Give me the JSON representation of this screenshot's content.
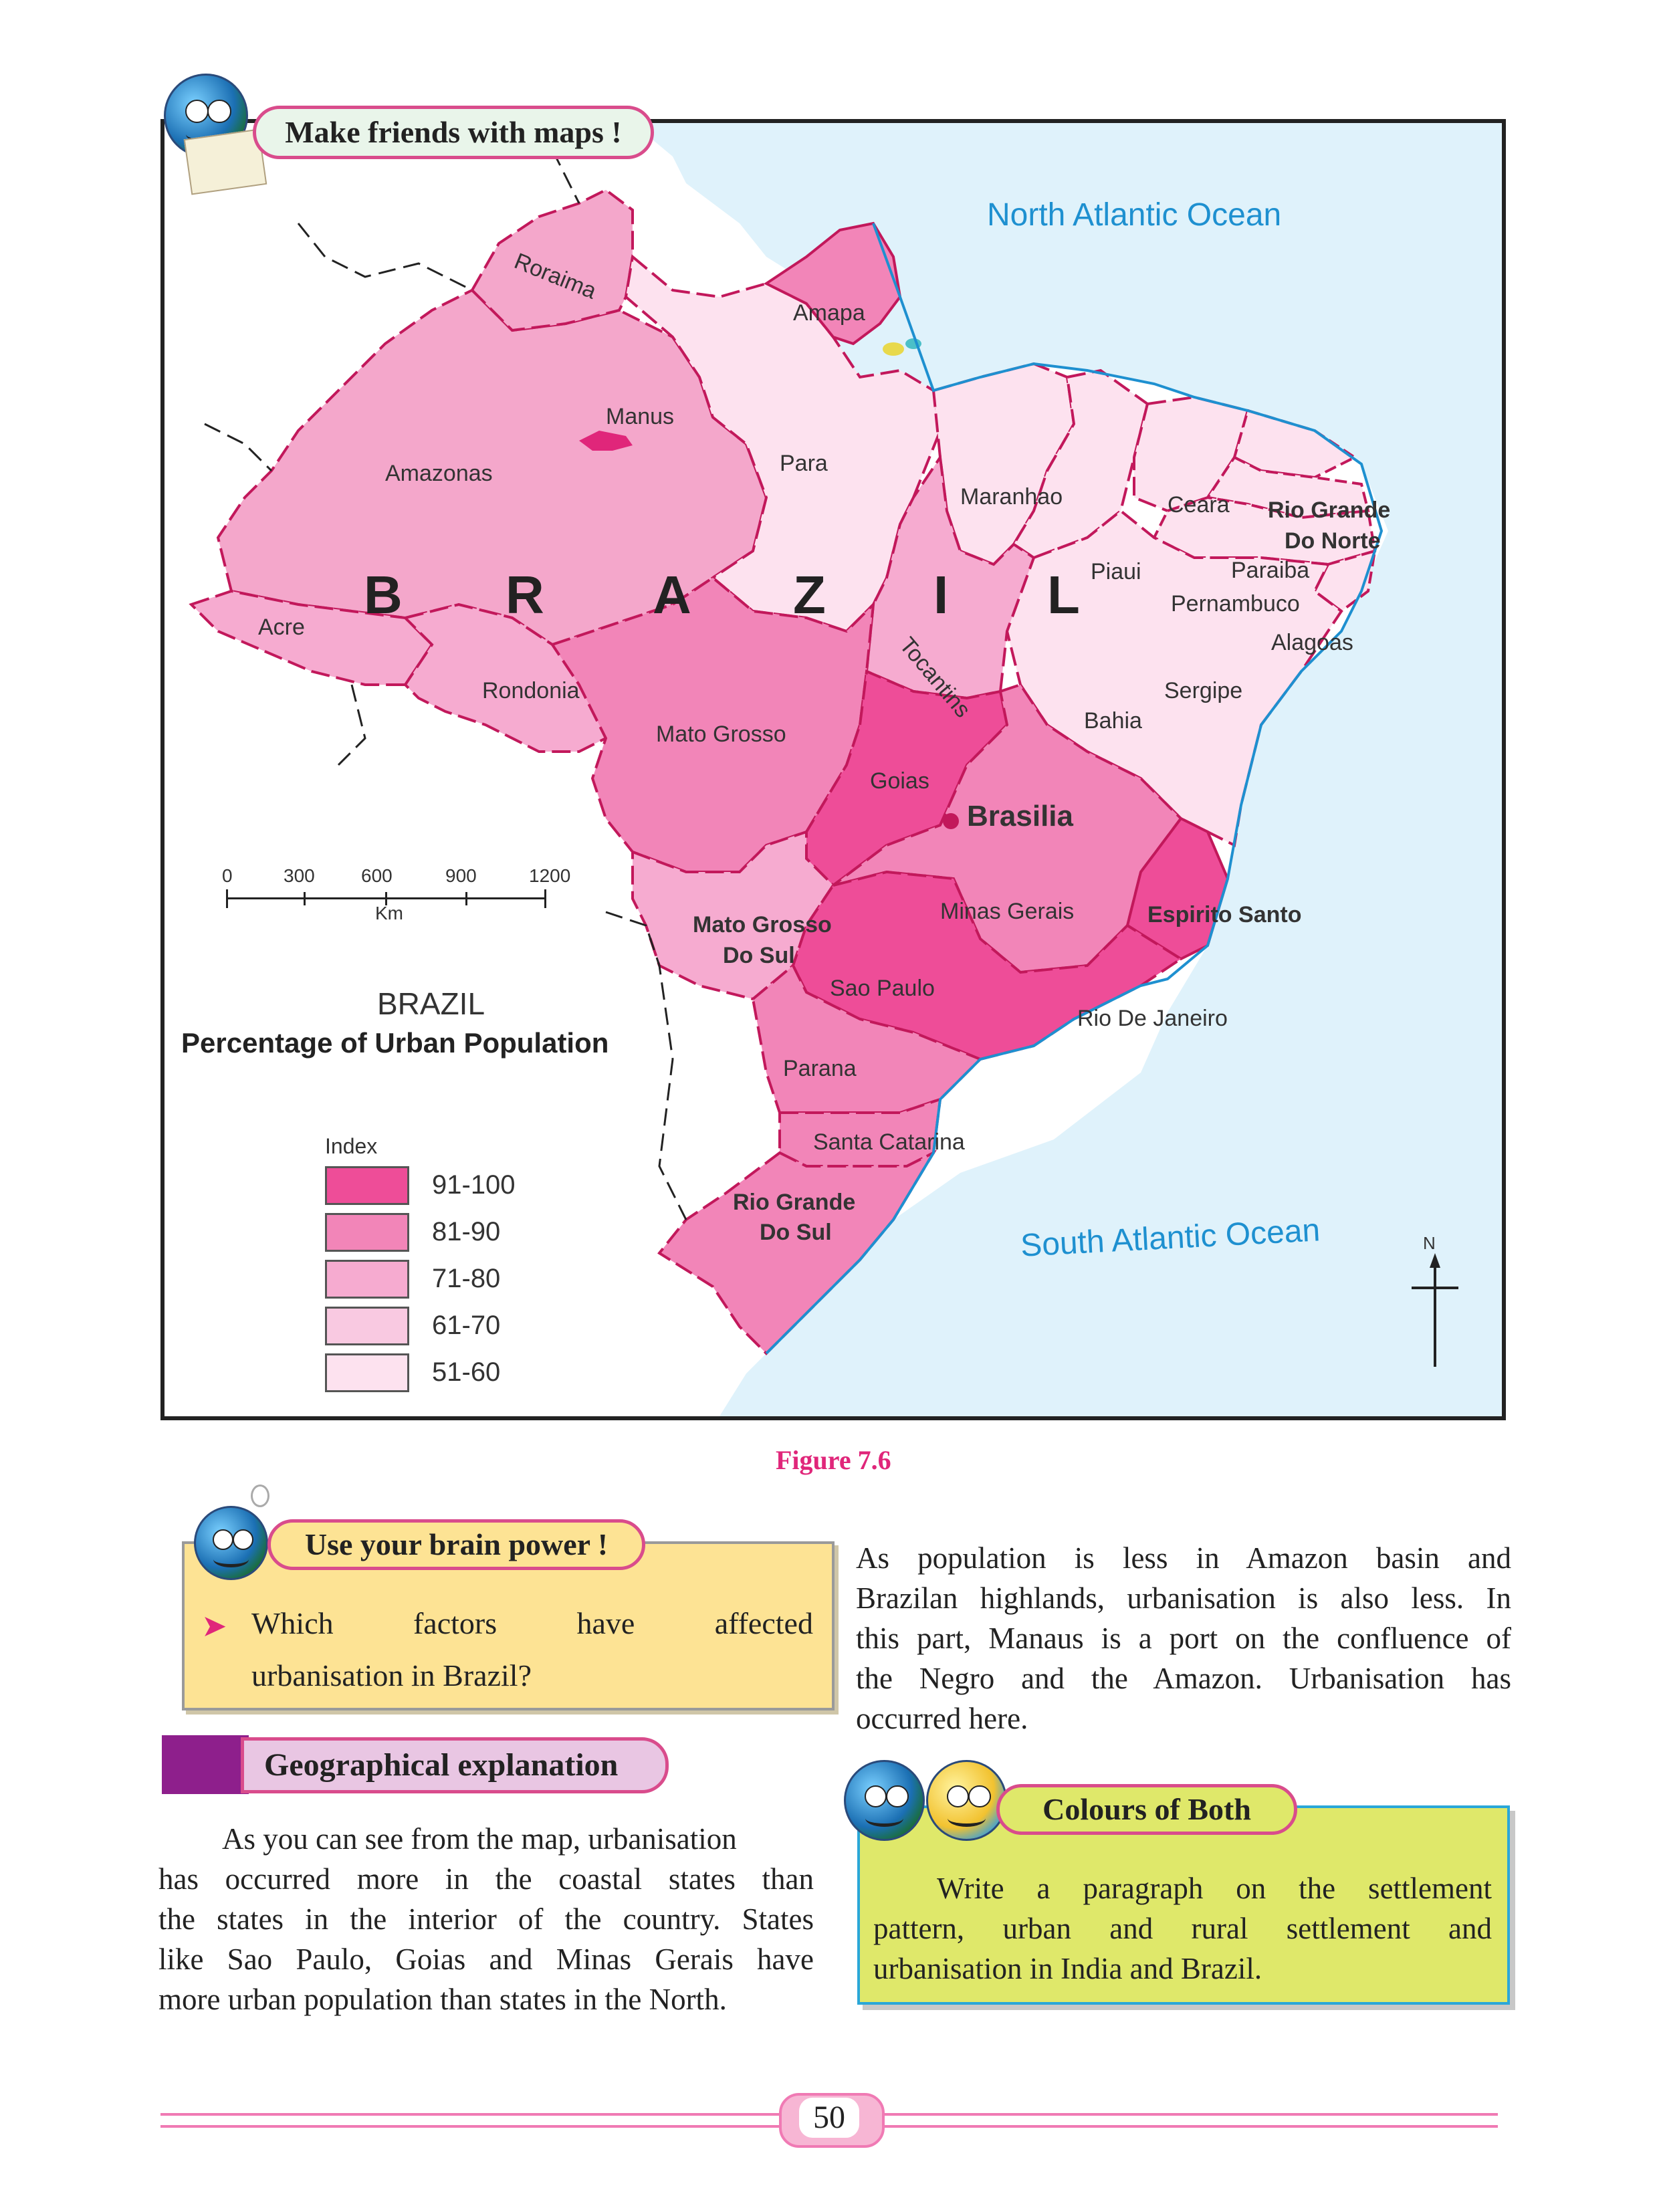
{
  "header": {
    "badge": "Make friends with maps !"
  },
  "map": {
    "oceans": {
      "north": "North Atlantic Ocean",
      "south": "South Atlantic Ocean"
    },
    "country_letters": [
      "B",
      "R",
      "A",
      "Z",
      "I",
      "L"
    ],
    "capital": "Brasilia",
    "states": {
      "roraima": "Roraima",
      "amapa": "Amapa",
      "manus": "Manus",
      "amazonas": "Amazonas",
      "para": "Para",
      "maranhao": "Maranhao",
      "ceara": "Ceara",
      "rgn1": "Rio Grande",
      "rgn2": "Do Norte",
      "piaui": "Piaui",
      "paraiba": "Paraiba",
      "pernambuco": "Pernambuco",
      "alagoas": "Alagoas",
      "acre": "Acre",
      "rondonia": "Rondonia",
      "tocantins": "Tocantins",
      "sergipe": "Sergipe",
      "bahia": "Bahia",
      "mato_grosso": "Mato Grosso",
      "goias": "Goias",
      "minas_gerais": "Minas Gerais",
      "espirito_santo": "Espirito Santo",
      "mgs1": "Mato Grosso",
      "mgs2": "Do Sul",
      "sao_paulo": "Sao Paulo",
      "rio_de_janeiro": "Rio De Janeiro",
      "parana": "Parana",
      "santa_catarina": "Santa Catarina",
      "rgs1": "Rio Grande",
      "rgs2": "Do Sul"
    },
    "scale": {
      "ticks": [
        "0",
        "300",
        "600",
        "900",
        "1200"
      ],
      "unit": "Km"
    },
    "title1": "BRAZIL",
    "title2": "Percentage of Urban Population",
    "legend": {
      "heading": "Index",
      "items": [
        {
          "label": "91-100",
          "color": "#ee4d98"
        },
        {
          "label": "81-90",
          "color": "#f285b8"
        },
        {
          "label": "71-80",
          "color": "#f6abd0"
        },
        {
          "label": "61-70",
          "color": "#f9c9e1"
        },
        {
          "label": "51-60",
          "color": "#fde2ef"
        }
      ]
    },
    "north": "N"
  },
  "figure_caption": "Figure 7.6",
  "brain_box": {
    "title": "Use your brain power !",
    "question_line1": [
      "Which",
      "factors",
      "have",
      "affected"
    ],
    "question_line2": "urbanisation in Brazil?"
  },
  "geo_header": "Geographical explanation",
  "left_paragraph": [
    "As you can see from the map, urbanisation",
    "has occurred more in the coastal states than",
    "the states in the interior of the country. States",
    "like Sao Paulo, Goias and Minas Gerais have",
    "more urban population than states in the North."
  ],
  "right_paragraph": [
    "As population is less in Amazon basin and",
    "Brazilan highlands, urbanisation is also less. In",
    "this part, Manaus is a port on the confluence of",
    "the Negro and the Amazon. Urbanisation has",
    "occurred here."
  ],
  "colours_box": {
    "title": "Colours of Both",
    "lines": [
      "Write a paragraph on the settlement",
      "pattern, urban and rural settlement and",
      "urbanisation in India and Brazil."
    ]
  },
  "page_number": "50",
  "colors": {
    "accent": "#e0267a",
    "ocean": "#dff2fb",
    "ocean_text": "#1e90d0",
    "purple": "#8e1f8c"
  }
}
